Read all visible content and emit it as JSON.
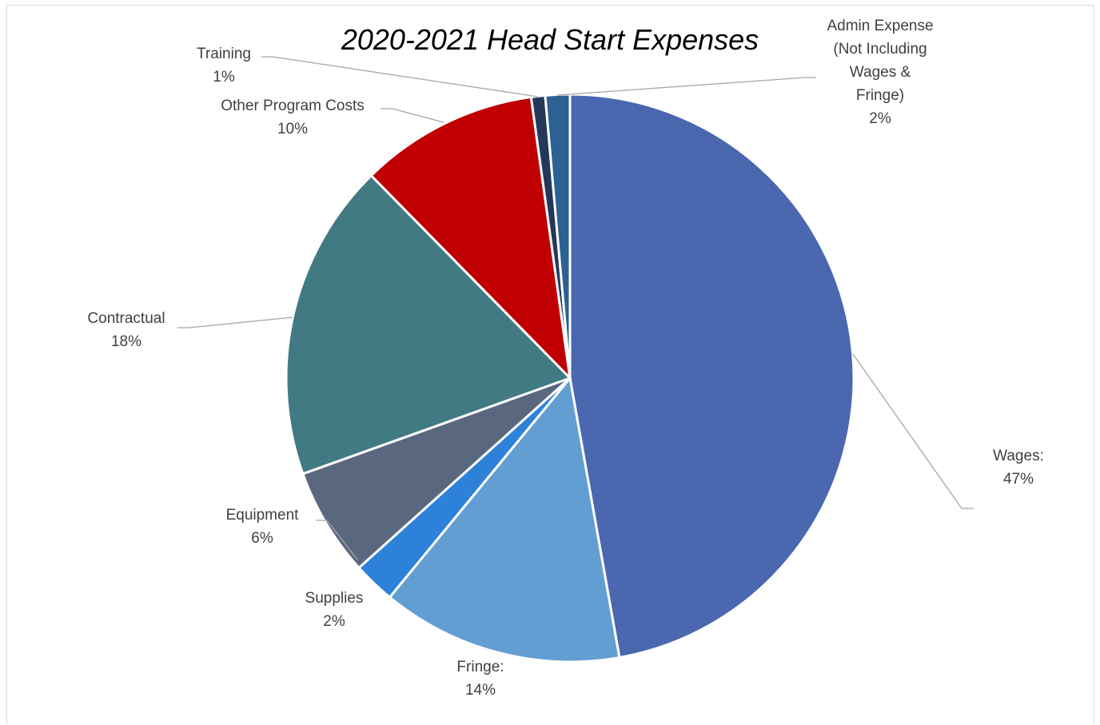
{
  "chart_data": {
    "type": "pie",
    "title": "2020-2021 Head Start Expenses",
    "start_angle_deg": 0,
    "direction": "clockwise",
    "slices": [
      {
        "key": "wages",
        "label_lines": [
          "Wages:",
          "47%"
        ],
        "value": 47.4,
        "color": "#4a67b0"
      },
      {
        "key": "fringe",
        "label_lines": [
          "Fringe:",
          "14%"
        ],
        "value": 13.8,
        "color": "#639ed3"
      },
      {
        "key": "supplies",
        "label_lines": [
          "Supplies",
          "2%"
        ],
        "value": 2.4,
        "color": "#2e81d9"
      },
      {
        "key": "equipment",
        "label_lines": [
          "Equipment",
          "6%"
        ],
        "value": 6.2,
        "color": "#5a687f"
      },
      {
        "key": "contractual",
        "label_lines": [
          "Contractual",
          "18%"
        ],
        "value": 18.2,
        "color": "#417a82"
      },
      {
        "key": "other-program-costs",
        "label_lines": [
          "Other Program Costs",
          "10%"
        ],
        "value": 10.2,
        "color": "#c00000"
      },
      {
        "key": "training",
        "label_lines": [
          "Training",
          "1%"
        ],
        "value": 0.8,
        "color": "#25385a"
      },
      {
        "key": "admin-expense",
        "label_lines": [
          "Admin Expense",
          "(Not Including",
          "Wages &",
          "Fringe)",
          "2%"
        ],
        "value": 1.4,
        "color": "#2c6193"
      }
    ]
  }
}
